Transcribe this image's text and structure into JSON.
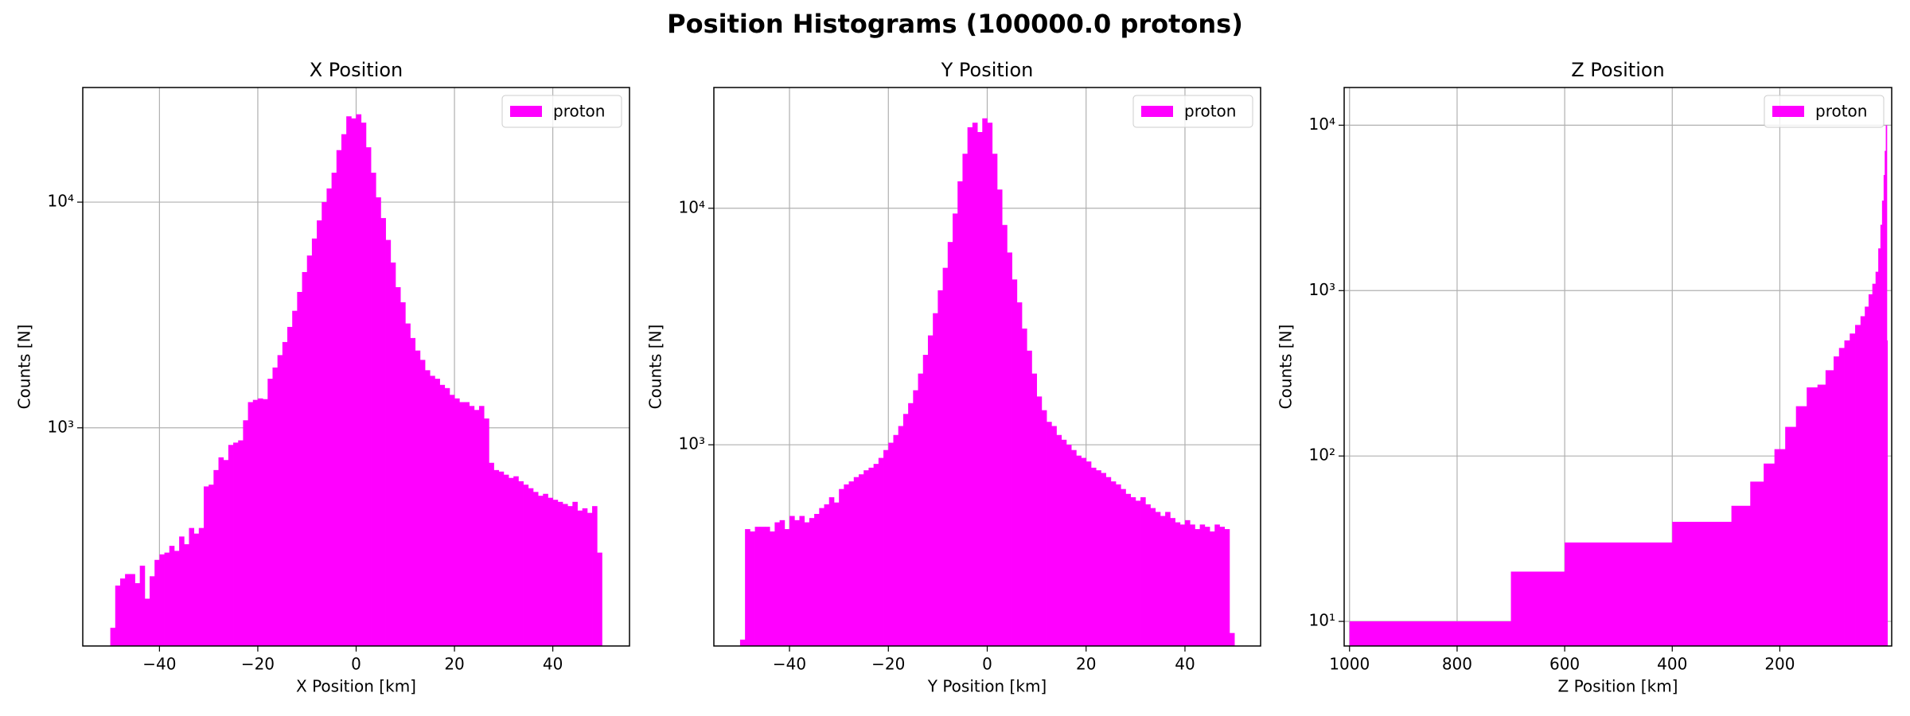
{
  "title": "Position Histograms (100000.0 protons)",
  "chart_data": [
    {
      "type": "histogram",
      "title": "X Position",
      "xlabel": "X Position [km]",
      "ylabel": "Counts [N]",
      "log_y": true,
      "grid": true,
      "legend": "upper right",
      "xlim": [
        -55.6,
        55.6
      ],
      "ylim": [
        108,
        32200
      ],
      "xticks": [
        {
          "value": -40,
          "label": "−40"
        },
        {
          "value": -20,
          "label": "−20"
        },
        0,
        20,
        40
      ],
      "yticks": [
        {
          "value": 1000,
          "label": "10³"
        },
        {
          "value": 10000,
          "label": "10⁴"
        }
      ],
      "bins": [
        -50,
        -49,
        -48,
        -47,
        -46,
        -45,
        -44,
        -43,
        -42,
        -41,
        -40,
        -39,
        -38,
        -37,
        -36,
        -35,
        -34,
        -33,
        -32,
        -31,
        -30,
        -29,
        -28,
        -27,
        -26,
        -25,
        -24,
        -23,
        -22,
        -21,
        -20,
        -19,
        -18,
        -17,
        -16,
        -15,
        -14,
        -13,
        -12,
        -11,
        -10,
        -9,
        -8,
        -7,
        -6,
        -5,
        -4,
        -3,
        -2,
        -1,
        0,
        1,
        2,
        3,
        4,
        5,
        6,
        7,
        8,
        9,
        10,
        11,
        12,
        13,
        14,
        15,
        16,
        17,
        18,
        19,
        20,
        21,
        22,
        23,
        24,
        25,
        26,
        27,
        28,
        29,
        30,
        31,
        32,
        33,
        34,
        35,
        36,
        37,
        38,
        39,
        40,
        41,
        42,
        43,
        44,
        45,
        46,
        47,
        48,
        49,
        50
      ],
      "series": [
        {
          "name": "proton",
          "color": "#ff00ff",
          "values": [
            130,
            200,
            215,
            225,
            225,
            205,
            245,
            175,
            220,
            260,
            275,
            280,
            300,
            285,
            330,
            305,
            360,
            340,
            360,
            550,
            560,
            650,
            740,
            720,
            840,
            860,
            880,
            1080,
            1300,
            1330,
            1350,
            1340,
            1650,
            1850,
            2100,
            2400,
            2800,
            3300,
            4000,
            4900,
            5800,
            6900,
            8300,
            10000,
            11500,
            13500,
            17000,
            20000,
            24000,
            23500,
            24500,
            22500,
            17500,
            13500,
            10500,
            8500,
            6800,
            5400,
            4200,
            3600,
            2900,
            2500,
            2200,
            2000,
            1800,
            1700,
            1650,
            1550,
            1500,
            1400,
            1350,
            1300,
            1300,
            1250,
            1200,
            1250,
            1100,
            700,
            650,
            640,
            620,
            600,
            610,
            580,
            560,
            540,
            520,
            500,
            510,
            490,
            480,
            470,
            460,
            450,
            470,
            430,
            440,
            420,
            450,
            280
          ]
        }
      ]
    },
    {
      "type": "histogram",
      "title": "Y Position",
      "xlabel": "Y Position [km]",
      "ylabel": "Counts [N]",
      "log_y": true,
      "grid": true,
      "legend": "upper right",
      "xlim": [
        -55.3,
        55.3
      ],
      "ylim": [
        141,
        32400
      ],
      "xticks": [
        {
          "value": -40,
          "label": "−40"
        },
        {
          "value": -20,
          "label": "−20"
        },
        0,
        20,
        40
      ],
      "yticks": [
        {
          "value": 1000,
          "label": "10³"
        },
        {
          "value": 10000,
          "label": "10⁴"
        }
      ],
      "bins": [
        -50,
        -49,
        -48,
        -47,
        -46,
        -45,
        -44,
        -43,
        -42,
        -41,
        -40,
        -39,
        -38,
        -37,
        -36,
        -35,
        -34,
        -33,
        -32,
        -31,
        -30,
        -29,
        -28,
        -27,
        -26,
        -25,
        -24,
        -23,
        -22,
        -21,
        -20,
        -19,
        -18,
        -17,
        -16,
        -15,
        -14,
        -13,
        -12,
        -11,
        -10,
        -9,
        -8,
        -7,
        -6,
        -5,
        -4,
        -3,
        -2,
        -1,
        0,
        1,
        2,
        3,
        4,
        5,
        6,
        7,
        8,
        9,
        10,
        11,
        12,
        13,
        14,
        15,
        16,
        17,
        18,
        19,
        20,
        21,
        22,
        23,
        24,
        25,
        26,
        27,
        28,
        29,
        30,
        31,
        32,
        33,
        34,
        35,
        36,
        37,
        38,
        39,
        40,
        41,
        42,
        43,
        44,
        45,
        46,
        47,
        48,
        49,
        50
      ],
      "series": [
        {
          "name": "proton",
          "color": "#ff00ff",
          "values": [
            150,
            440,
            430,
            450,
            450,
            450,
            430,
            470,
            480,
            440,
            500,
            480,
            500,
            470,
            490,
            510,
            540,
            560,
            600,
            570,
            650,
            680,
            700,
            730,
            750,
            780,
            800,
            830,
            880,
            950,
            1020,
            1100,
            1200,
            1350,
            1500,
            1700,
            2000,
            2400,
            2900,
            3600,
            4500,
            5600,
            7200,
            9500,
            13000,
            17000,
            22000,
            23000,
            21000,
            24000,
            23000,
            17000,
            12000,
            8500,
            6500,
            5000,
            4000,
            3100,
            2500,
            2000,
            1600,
            1400,
            1250,
            1200,
            1100,
            1050,
            1000,
            950,
            900,
            880,
            850,
            800,
            780,
            760,
            730,
            700,
            680,
            650,
            620,
            600,
            580,
            600,
            560,
            540,
            520,
            500,
            520,
            490,
            470,
            460,
            480,
            460,
            440,
            460,
            450,
            430,
            460,
            450,
            440,
            160
          ]
        }
      ]
    },
    {
      "type": "histogram",
      "title": "Z Position",
      "xlabel": "Z Position [km]",
      "ylabel": "Counts [N]",
      "log_y": true,
      "grid": true,
      "legend": "upper right",
      "xlim": [
        1010,
        -8
      ],
      "ylim": [
        7.1,
        16900
      ],
      "xticks": [
        1000,
        800,
        600,
        400,
        200
      ],
      "yticks": [
        {
          "value": 10,
          "label": "10¹"
        },
        {
          "value": 100,
          "label": "10²"
        },
        {
          "value": 1000,
          "label": "10³"
        },
        {
          "value": 10000,
          "label": "10⁴"
        }
      ],
      "bins": [
        1000,
        700,
        600,
        400,
        290,
        255,
        230,
        210,
        190,
        170,
        150,
        130,
        115,
        100,
        90,
        80,
        70,
        60,
        50,
        42,
        35,
        28,
        22,
        17,
        13,
        10,
        7,
        5,
        3,
        1,
        0
      ],
      "series": [
        {
          "name": "proton",
          "color": "#ff00ff",
          "values": [
            10,
            20,
            30,
            40,
            50,
            70,
            90,
            110,
            150,
            200,
            260,
            270,
            330,
            400,
            450,
            500,
            550,
            620,
            700,
            800,
            950,
            1100,
            1300,
            1800,
            2500,
            3500,
            5000,
            7000,
            10000,
            500
          ]
        }
      ]
    }
  ]
}
